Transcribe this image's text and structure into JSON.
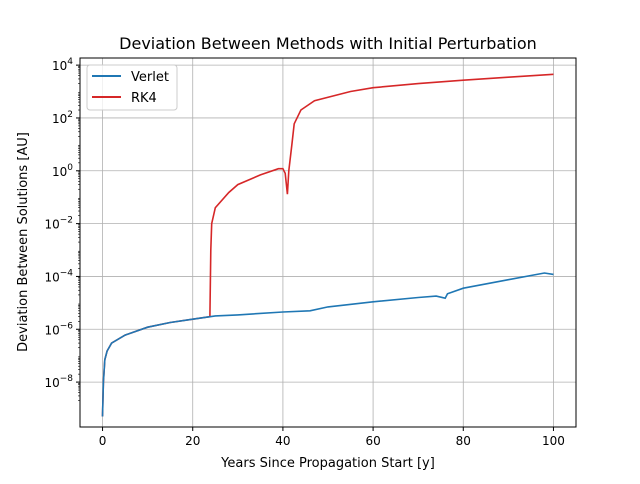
{
  "chart_data": {
    "type": "line",
    "title": "Deviation Between Methods with Initial Perturbation",
    "xlabel": "Years Since Propagation Start [y]",
    "ylabel": "Deviation Between Solutions [AU]",
    "xlim": [
      -5,
      105
    ],
    "ylim_log10": [
      -9.7,
      4.27
    ],
    "yscale": "log",
    "grid": true,
    "legend": "top-left",
    "xticks": [
      0,
      20,
      40,
      60,
      80,
      100
    ],
    "xtick_labels": [
      "0",
      "20",
      "40",
      "60",
      "80",
      "100"
    ],
    "yticks_log10": [
      -8,
      -6,
      -4,
      -2,
      0,
      2,
      4
    ],
    "series": [
      {
        "name": "Verlet",
        "color": "#1f77b4",
        "x": [
          0,
          0.2,
          0.5,
          1,
          2,
          5,
          10,
          15,
          20,
          25,
          30,
          40,
          46,
          50,
          60,
          70,
          74,
          76,
          76.5,
          80,
          90,
          98,
          100
        ],
        "y": [
          5e-10,
          1e-08,
          7e-08,
          1.5e-07,
          3e-07,
          6e-07,
          1.2e-06,
          1.8e-06,
          2.4e-06,
          3.2e-06,
          3.5e-06,
          4.5e-06,
          5e-06,
          7e-06,
          1.1e-05,
          1.6e-05,
          1.8e-05,
          1.5e-05,
          2.2e-05,
          3.6e-05,
          7.5e-05,
          0.000135,
          0.00012
        ]
      },
      {
        "name": "RK4",
        "color": "#d62728",
        "x": [
          0,
          0.2,
          0.5,
          1,
          2,
          5,
          10,
          15,
          20,
          23.8,
          24,
          24.2,
          25,
          28,
          30,
          35,
          39,
          40,
          40.5,
          41,
          41.3,
          42,
          42.5,
          44,
          47,
          55,
          60,
          70,
          80,
          90,
          100
        ],
        "y": [
          5e-10,
          1e-08,
          7e-08,
          1.5e-07,
          3e-07,
          6e-07,
          1.2e-06,
          1.8e-06,
          2.4e-06,
          3e-06,
          0.001,
          0.01,
          0.04,
          0.15,
          0.3,
          0.7,
          1.2,
          1.2,
          0.8,
          0.13,
          1,
          10,
          60,
          200,
          450,
          1000,
          1400,
          2000,
          2700,
          3500,
          4500
        ]
      }
    ]
  }
}
